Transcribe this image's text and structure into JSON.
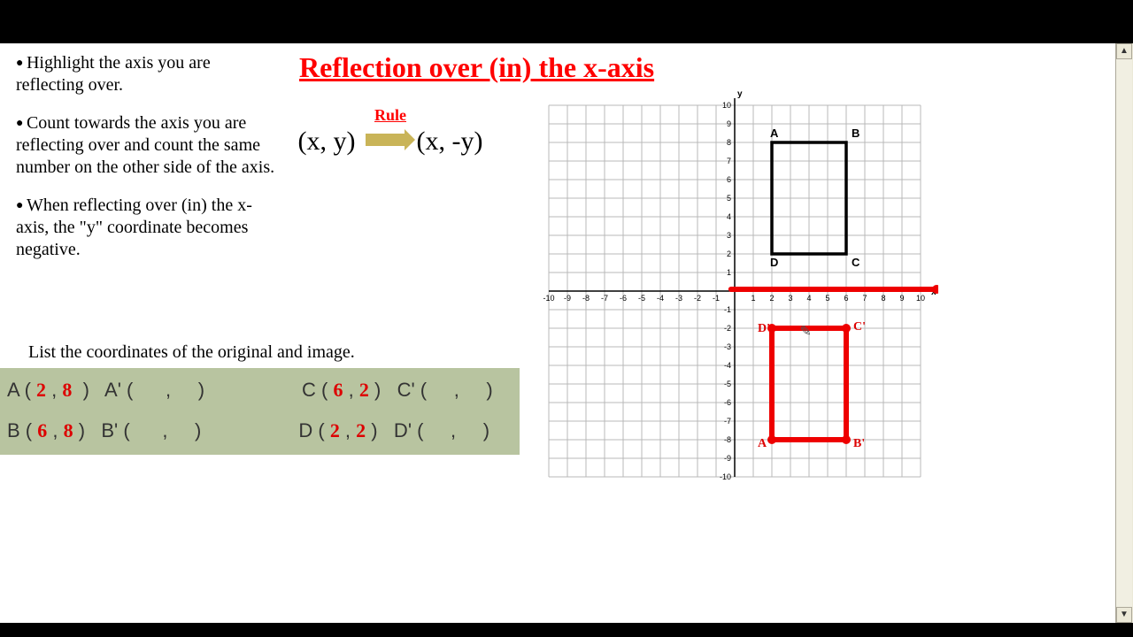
{
  "title": "Reflection over (in) the x-axis",
  "bullets": [
    {
      "lead": "Highlight the axis",
      "rest": "you are reflecting over."
    },
    {
      "lead": "Count towards the axis",
      "rest": "you are reflecting over and count the same number on the other side of the axis."
    },
    {
      "lead": "When reflecting over (in)",
      "rest": "the x-axis, the \"y\" coordinate becomes negative."
    }
  ],
  "rule": {
    "label": "Rule",
    "from": "(x, y)",
    "to": "(x, -y)"
  },
  "listHeader": "List the coordinates of the original and image.",
  "table": {
    "r1": {
      "A": {
        "x": "2",
        "y": "8"
      },
      "Ap": {
        "x": "",
        "y": ""
      },
      "C": {
        "x": "6",
        "y": "2"
      },
      "Cp": {
        "x": "",
        "y": ""
      }
    },
    "r2": {
      "B": {
        "x": "6",
        "y": "8"
      },
      "Bp": {
        "x": "",
        "y": ""
      },
      "D": {
        "x": "2",
        "y": "2"
      },
      "Dp": {
        "x": "",
        "y": ""
      }
    }
  },
  "graph": {
    "range": [
      -10,
      10
    ],
    "orig": {
      "A": [
        2,
        8
      ],
      "B": [
        6,
        8
      ],
      "C": [
        6,
        2
      ],
      "D": [
        2,
        2
      ]
    },
    "refl": {
      "Ap": [
        2,
        -8
      ],
      "Bp": [
        6,
        -8
      ],
      "Cp": [
        6,
        -2
      ],
      "Dp": [
        2,
        -2
      ]
    },
    "reflLabels": {
      "Ap": "A'",
      "Bp": "B'",
      "Cp": "C'",
      "Dp": "D'"
    },
    "origLabels": {
      "A": "A",
      "B": "B",
      "C": "C",
      "D": "D"
    },
    "colors": {
      "grid": "#b8b8b8",
      "axis": "#000",
      "orig": "#000",
      "refl": "#e00",
      "hilite": "#e00",
      "bg": "#fff",
      "table_bg": "#b8c4a0",
      "hand": "#d00",
      "title": "#ff0000"
    }
  }
}
